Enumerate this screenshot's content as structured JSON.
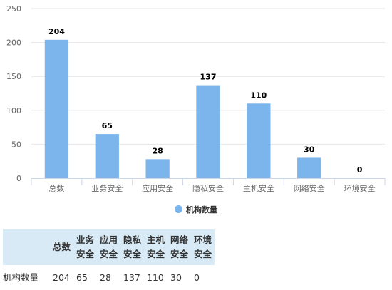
{
  "chart_data": {
    "type": "bar",
    "categories": [
      "总数",
      "业务安全",
      "应用安全",
      "隐私安全",
      "主机安全",
      "网络安全",
      "环境安全"
    ],
    "series": [
      {
        "name": "机构数量",
        "values": [
          204,
          65,
          28,
          137,
          110,
          30,
          0
        ]
      }
    ],
    "ylim": [
      0,
      250
    ],
    "yticks": [
      0,
      50,
      100,
      150,
      200,
      250
    ],
    "grid": true,
    "legend": "bottom",
    "colors": {
      "bar": "#7cb5ec",
      "grid": "#e6e6e6",
      "axis": "#ccd6eb"
    }
  },
  "table": {
    "corner": "",
    "headers": [
      "总数",
      "业务安全",
      "应用安全",
      "隐私安全",
      "主机安全",
      "网络安全",
      "环境安全"
    ],
    "rows": [
      {
        "label": "机构数量",
        "values": [
          "204",
          "65",
          "28",
          "137",
          "110",
          "30",
          "0"
        ]
      }
    ]
  }
}
